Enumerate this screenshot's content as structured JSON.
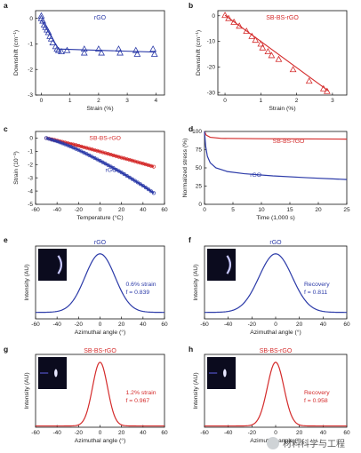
{
  "chart_data": [
    {
      "panel": "a",
      "type": "scatter",
      "title": "rGO",
      "xlabel": "Strain (%)",
      "ylabel": "Downshift (cm⁻¹)",
      "xlim": [
        -0.2,
        4.3
      ],
      "ylim": [
        -3,
        0.3
      ],
      "xticks": [
        "0",
        "1",
        "2",
        "3",
        "4"
      ],
      "yticks": [
        "0",
        "-1",
        "-2",
        "-3"
      ],
      "color": "#2b3aa8",
      "points": [
        [
          0.0,
          0.1
        ],
        [
          0.0,
          0.0
        ],
        [
          0.05,
          -0.1
        ],
        [
          0.1,
          -0.25
        ],
        [
          0.15,
          -0.35
        ],
        [
          0.2,
          -0.45
        ],
        [
          0.25,
          -0.55
        ],
        [
          0.3,
          -0.7
        ],
        [
          0.35,
          -0.8
        ],
        [
          0.4,
          -0.95
        ],
        [
          0.5,
          -1.1
        ],
        [
          0.55,
          -1.2
        ],
        [
          0.6,
          -1.25
        ],
        [
          0.7,
          -1.3
        ],
        [
          0.9,
          -1.25
        ],
        [
          1.5,
          -1.2
        ],
        [
          1.5,
          -1.35
        ],
        [
          2.0,
          -1.2
        ],
        [
          2.1,
          -1.35
        ],
        [
          2.7,
          -1.2
        ],
        [
          2.75,
          -1.35
        ],
        [
          3.3,
          -1.25
        ],
        [
          3.35,
          -1.4
        ],
        [
          3.9,
          -1.2
        ],
        [
          3.95,
          -1.4
        ]
      ],
      "fit": [
        [
          0,
          -0.05
        ],
        [
          0.6,
          -1.2
        ],
        [
          4.0,
          -1.32
        ]
      ]
    },
    {
      "panel": "b",
      "type": "scatter",
      "title": "SB-BS-rGO",
      "xlabel": "Strain (%)",
      "ylabel": "Downshift (cm⁻¹)",
      "xlim": [
        -0.2,
        3.4
      ],
      "ylim": [
        -31,
        2
      ],
      "xticks": [
        "0",
        "1",
        "2",
        "3"
      ],
      "yticks": [
        "0",
        "-10",
        "-20",
        "-30"
      ],
      "color": "#d42b2b",
      "points": [
        [
          0.0,
          0.2
        ],
        [
          0.1,
          -1.0
        ],
        [
          0.25,
          -2.5
        ],
        [
          0.4,
          -4.0
        ],
        [
          0.6,
          -6.0
        ],
        [
          0.75,
          -8.0
        ],
        [
          0.85,
          -9.5
        ],
        [
          1.0,
          -11.0
        ],
        [
          1.05,
          -12.5
        ],
        [
          1.2,
          -14.0
        ],
        [
          1.3,
          -15.5
        ],
        [
          1.5,
          -17.0
        ],
        [
          1.9,
          -21.0
        ],
        [
          2.35,
          -25.5
        ],
        [
          2.75,
          -28.5
        ],
        [
          2.85,
          -29.5
        ]
      ],
      "fit": [
        [
          0,
          0.2
        ],
        [
          2.9,
          -29.5
        ]
      ]
    },
    {
      "panel": "c",
      "type": "line",
      "xlabel": "Temperature (°C)",
      "ylabel": "Strain (10⁻³)",
      "xlim": [
        -60,
        60
      ],
      "ylim": [
        -5,
        0.5
      ],
      "xticks": [
        "-60",
        "-40",
        "-20",
        "0",
        "20",
        "40",
        "60"
      ],
      "yticks": [
        "0",
        "-1",
        "-2",
        "-3",
        "-4",
        "-5"
      ],
      "series": [
        {
          "name": "SB-BS-rGO",
          "color": "#d42b2b",
          "points": [
            [
              -50,
              0
            ],
            [
              -40,
              -0.18
            ],
            [
              -30,
              -0.38
            ],
            [
              -20,
              -0.58
            ],
            [
              -10,
              -0.8
            ],
            [
              0,
              -1.02
            ],
            [
              10,
              -1.25
            ],
            [
              20,
              -1.48
            ],
            [
              30,
              -1.7
            ],
            [
              40,
              -1.93
            ],
            [
              50,
              -2.16
            ]
          ]
        },
        {
          "name": "rGO",
          "color": "#2b3aa8",
          "points": [
            [
              -50,
              0
            ],
            [
              -40,
              -0.25
            ],
            [
              -30,
              -0.55
            ],
            [
              -20,
              -0.9
            ],
            [
              -10,
              -1.3
            ],
            [
              0,
              -1.72
            ],
            [
              10,
              -2.15
            ],
            [
              20,
              -2.6
            ],
            [
              30,
              -3.1
            ],
            [
              40,
              -3.6
            ],
            [
              50,
              -4.15
            ]
          ]
        }
      ]
    },
    {
      "panel": "d",
      "type": "line",
      "xlabel": "Time (1,000 s)",
      "ylabel": "Normalized stress (%)",
      "xlim": [
        0,
        25
      ],
      "ylim": [
        0,
        100
      ],
      "xticks": [
        "0",
        "5",
        "10",
        "15",
        "20",
        "25"
      ],
      "yticks": [
        "0",
        "25",
        "50",
        "75",
        "100"
      ],
      "series": [
        {
          "name": "SB-BS-rGO",
          "color": "#d42b2b",
          "points": [
            [
              0,
              100
            ],
            [
              0.3,
              95
            ],
            [
              1,
              92
            ],
            [
              3,
              90.5
            ],
            [
              10,
              90
            ],
            [
              25,
              89.5
            ]
          ]
        },
        {
          "name": "rGO",
          "color": "#2b3aa8",
          "points": [
            [
              0,
              100
            ],
            [
              0.2,
              80
            ],
            [
              0.5,
              66
            ],
            [
              1,
              57
            ],
            [
              2,
              50
            ],
            [
              4,
              45
            ],
            [
              7,
              42
            ],
            [
              12,
              39
            ],
            [
              18,
              36.5
            ],
            [
              25,
              34
            ]
          ]
        }
      ]
    },
    {
      "panel": "e",
      "type": "line",
      "title": "rGO",
      "xlabel": "Azimuthal angle (°)",
      "ylabel": "Intensity (AU)",
      "xlim": [
        -60,
        60
      ],
      "xticks": [
        "-60",
        "-40",
        "-20",
        "0",
        "20",
        "40",
        "60"
      ],
      "color": "#2b3aa8",
      "peak_center": 0,
      "peak_width": 14,
      "peak_baseline": 0.1,
      "annotation": [
        "0.6% strain",
        "f = 0.839"
      ]
    },
    {
      "panel": "f",
      "type": "line",
      "title": "rGO",
      "xlabel": "Azimuthal angle (°)",
      "ylabel": "Intensity (AU)",
      "xlim": [
        -60,
        60
      ],
      "xticks": [
        "-60",
        "-40",
        "-20",
        "0",
        "20",
        "40",
        "60"
      ],
      "color": "#2b3aa8",
      "peak_center": 0,
      "peak_width": 14,
      "peak_baseline": 0.1,
      "annotation": [
        "Recovery",
        "f = 0.811"
      ]
    },
    {
      "panel": "g",
      "type": "line",
      "title": "SB-BS-rGO",
      "xlabel": "Azimuthal angle (°)",
      "ylabel": "Intensity (AU)",
      "xlim": [
        -60,
        60
      ],
      "xticks": [
        "-60",
        "-40",
        "-20",
        "0",
        "20",
        "40",
        "60"
      ],
      "color": "#d42b2b",
      "peak_center": 0,
      "peak_width": 7,
      "peak_baseline": 0.02,
      "annotation": [
        "1.2% strain",
        "f = 0.967"
      ]
    },
    {
      "panel": "h",
      "type": "line",
      "title": "SB-BS-rGO",
      "xlabel": "Azimuthal angle (°)",
      "ylabel": "Intensity (AU)",
      "xlim": [
        -60,
        60
      ],
      "xticks": [
        "-60",
        "-40",
        "-20",
        "0",
        "20",
        "40",
        "60"
      ],
      "color": "#d42b2b",
      "peak_center": 0,
      "peak_width": 7,
      "peak_baseline": 0.02,
      "annotation": [
        "Recovery",
        "f = 0.958"
      ]
    }
  ],
  "watermark": {
    "text": "材料科学与工程"
  }
}
